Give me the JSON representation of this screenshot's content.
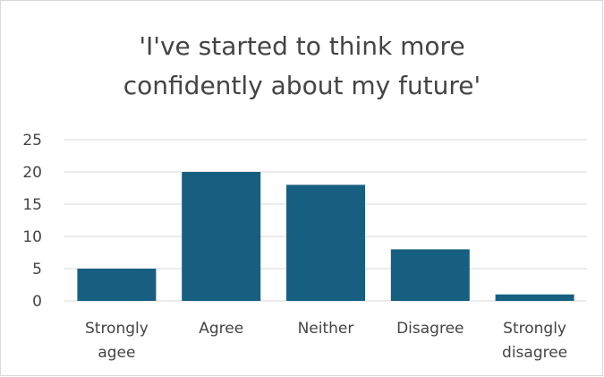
{
  "chart_data": {
    "type": "bar",
    "title_lines": [
      "'I've started to think more",
      "confidently about my future'"
    ],
    "categories": [
      [
        "Strongly",
        "agee"
      ],
      [
        "Agree"
      ],
      [
        "Neither"
      ],
      [
        "Disagree"
      ],
      [
        "Strongly",
        "disagree"
      ]
    ],
    "values": [
      5,
      20,
      18,
      8,
      1
    ],
    "ylim": [
      0,
      25
    ],
    "yticks": [
      0,
      5,
      10,
      15,
      20,
      25
    ],
    "grid": true,
    "bar_color": "#175f80",
    "grid_color": "#d9d9d9",
    "text_color": "#444444"
  }
}
